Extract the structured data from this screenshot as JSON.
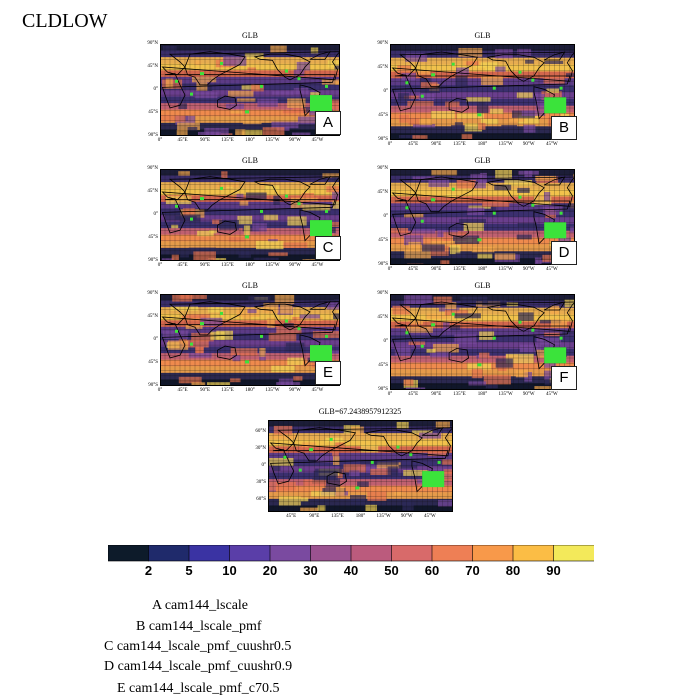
{
  "variable": "CLDLOW",
  "panels": [
    {
      "title": "GLB",
      "letter": "A"
    },
    {
      "title": "GLB",
      "letter": "B"
    },
    {
      "title": "GLB",
      "letter": "C"
    },
    {
      "title": "GLB",
      "letter": "D"
    },
    {
      "title": "GLB",
      "letter": "E"
    },
    {
      "title": "GLB",
      "letter": "F"
    },
    {
      "title": "GLB=67.2438957912325",
      "letter": ""
    }
  ],
  "lat_ticks": [
    "90°N",
    "45°N",
    "0°",
    "45°S",
    "90°S"
  ],
  "lon_ticks": [
    "0°",
    "45°E",
    "90°E",
    "135°E",
    "180°",
    "135°W",
    "90°W",
    "45°W"
  ],
  "diff_lat_ticks": [
    "60°N",
    "30°N",
    "0°",
    "30°S",
    "60°S"
  ],
  "diff_lon_ticks": [
    "45°E",
    "90°E",
    "135°E",
    "180°",
    "135°W",
    "90°W",
    "45°W"
  ],
  "colorbar": {
    "labels": [
      "2",
      "5",
      "10",
      "20",
      "30",
      "40",
      "50",
      "60",
      "70",
      "80",
      "90"
    ],
    "colors": [
      "#0d1b2a",
      "#1f2a6b",
      "#3a33a3",
      "#5a3ea8",
      "#7a4aa0",
      "#9a5290",
      "#bb5b7d",
      "#d86a6a",
      "#ee7f55",
      "#f8994a",
      "#fbbd45",
      "#f3e95a"
    ]
  },
  "legend": [
    "A  cam144_lscale",
    "B  cam144_lscale_pmf",
    "C  cam144_lscale_pmf_cuushr0.5",
    "D  cam144_lscale_pmf_cuushr0.9",
    "E  cam144_lscale_pmf_c70.5"
  ]
}
